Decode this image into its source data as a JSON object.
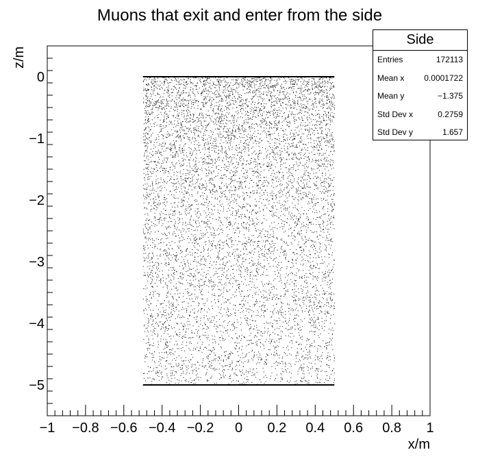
{
  "chart_data": {
    "type": "scatter",
    "title": "Muons that exit and enter from the side",
    "xlabel": "x/m",
    "ylabel": "z/m",
    "xlim": [
      -1,
      1
    ],
    "ylim": [
      -5.5,
      0.5
    ],
    "xticks": [
      {
        "value": -1,
        "label": "−1"
      },
      {
        "value": -0.8,
        "label": "−0.8"
      },
      {
        "value": -0.6,
        "label": "−0.6"
      },
      {
        "value": -0.4,
        "label": "−0.4"
      },
      {
        "value": -0.2,
        "label": "−0.2"
      },
      {
        "value": 0,
        "label": "0"
      },
      {
        "value": 0.2,
        "label": "0.2"
      },
      {
        "value": 0.4,
        "label": "0.4"
      },
      {
        "value": 0.6,
        "label": "0.6"
      },
      {
        "value": 0.8,
        "label": "0.8"
      },
      {
        "value": 1,
        "label": "1"
      }
    ],
    "yticks": [
      {
        "value": 0,
        "label": "0"
      },
      {
        "value": -1,
        "label": "−1"
      },
      {
        "value": -2,
        "label": "−2"
      },
      {
        "value": -3,
        "label": "−3"
      },
      {
        "value": -4,
        "label": "−4"
      },
      {
        "value": -5,
        "label": "−5"
      }
    ],
    "point_region": {
      "x": [
        -0.5,
        0.5
      ],
      "y": [
        -5,
        0
      ]
    },
    "density_note": "uniform in x; density decreasing from z=0 (dense) to z=-5",
    "marker_color": "#000000",
    "grid": false
  },
  "stats": {
    "title": "Side",
    "rows": [
      {
        "key": "Entries",
        "value": "172113"
      },
      {
        "key": "Mean x",
        "value": "0.0001722"
      },
      {
        "key": "Mean y",
        "value": "−1.375"
      },
      {
        "key": "Std Dev x",
        "value": "0.2759"
      },
      {
        "key": "Std Dev y",
        "value": "1.657"
      }
    ]
  }
}
